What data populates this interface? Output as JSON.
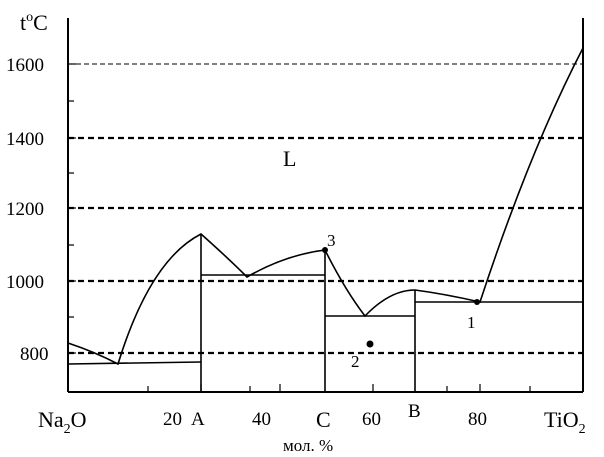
{
  "axis": {
    "y_unit_main": "t",
    "y_unit_sup": "o",
    "y_unit_end": "C",
    "y_ticks": [
      "1600",
      "1400",
      "1200",
      "1000",
      "800"
    ],
    "x_left_main": "Na",
    "x_left_sub": "2",
    "x_left_end": "O",
    "x_right_main": "TiO",
    "x_right_sub": "2",
    "x_ticks": [
      "20",
      "40",
      "60",
      "80"
    ],
    "x_letters": [
      "A",
      "C",
      "B"
    ],
    "x_caption": "мол. %"
  },
  "regions": {
    "liquid": "L"
  },
  "points": [
    "1",
    "2",
    "3"
  ]
}
